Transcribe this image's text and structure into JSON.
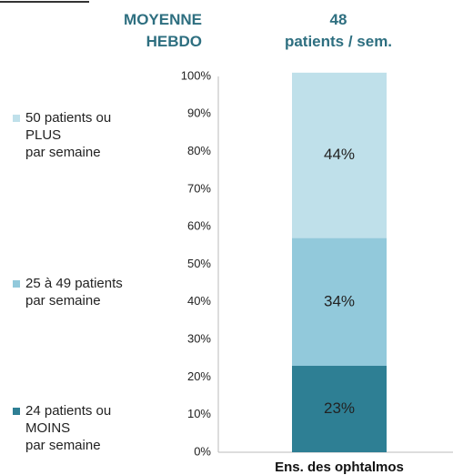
{
  "chart_data": {
    "type": "stacked_bar",
    "header": {
      "left": "MOYENNE\nHEBDO",
      "value": "48",
      "unit": "patients / sem."
    },
    "categories": [
      "Ens. des ophtalmos"
    ],
    "series": [
      {
        "name": "24 patients ou\nMOINS\npar semaine",
        "color": "#2e7f94",
        "values": [
          23
        ],
        "value_labels": [
          "23%"
        ]
      },
      {
        "name": "25 à 49 patients\npar semaine",
        "color": "#92c9db",
        "values": [
          34
        ],
        "value_labels": [
          "34%"
        ]
      },
      {
        "name": "50 patients ou\nPLUS\npar semaine",
        "color": "#bfe0ea",
        "values": [
          44
        ],
        "value_labels": [
          "44%"
        ]
      }
    ],
    "ylim": [
      0,
      100
    ],
    "yticks": [
      {
        "value": 0,
        "label": "0%"
      },
      {
        "value": 10,
        "label": "10%"
      },
      {
        "value": 20,
        "label": "20%"
      },
      {
        "value": 30,
        "label": "30%"
      },
      {
        "value": 40,
        "label": "40%"
      },
      {
        "value": 50,
        "label": "50%"
      },
      {
        "value": 60,
        "label": "60%"
      },
      {
        "value": 70,
        "label": "70%"
      },
      {
        "value": 80,
        "label": "80%"
      },
      {
        "value": 90,
        "label": "90%"
      },
      {
        "value": 100,
        "label": "100%"
      }
    ]
  }
}
